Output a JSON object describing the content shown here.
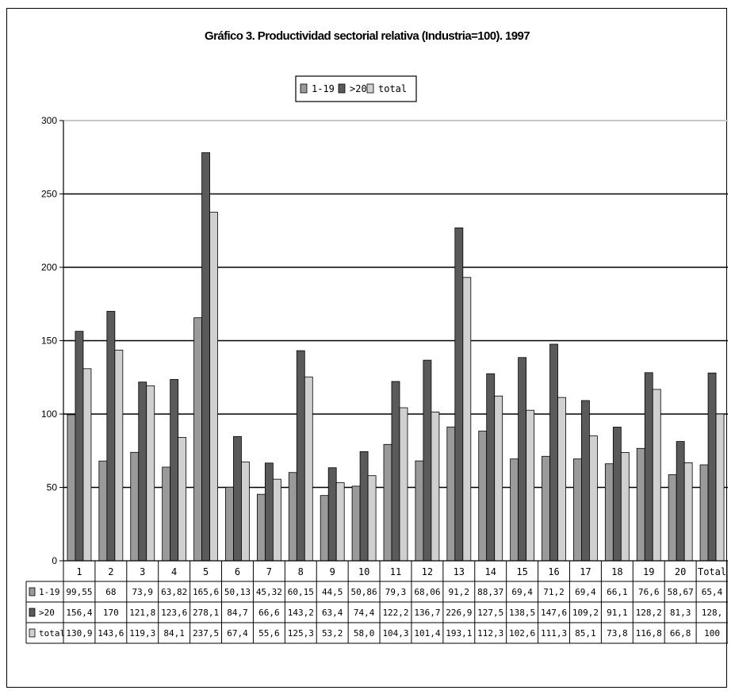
{
  "chart_data": {
    "type": "bar",
    "title": "Gráfico 3. Productividad sectorial relativa (Industria=100). 1997",
    "xlabel": "",
    "ylabel": "",
    "ylim": [
      0,
      300
    ],
    "y_ticks": [
      0,
      50,
      100,
      150,
      200,
      250,
      300
    ],
    "grid": true,
    "legend_position": "top-center",
    "categories": [
      "1",
      "2",
      "3",
      "4",
      "5",
      "6",
      "7",
      "8",
      "9",
      "10",
      "11",
      "12",
      "13",
      "14",
      "15",
      "16",
      "17",
      "18",
      "19",
      "20",
      "Total"
    ],
    "series": [
      {
        "name": "1-19",
        "color": "#9a9a9a",
        "values": [
          99.55,
          68,
          73.9,
          63.82,
          165.6,
          50.13,
          45.32,
          60.15,
          44.5,
          50.86,
          79.3,
          68.06,
          91.2,
          88.37,
          69.4,
          71.2,
          69.4,
          66.1,
          76.6,
          58.67,
          65.4
        ],
        "table_text": [
          "99,55",
          "68",
          "73,9",
          "63,82",
          "165,6",
          "50,13",
          "45,32",
          "60,15",
          "44,5",
          "50,86",
          "79,3",
          "68,06",
          "91,2",
          "88,37",
          "69,4",
          "71,2",
          "69,4",
          "66,1",
          "76,6",
          "58,67",
          "65,4"
        ]
      },
      {
        "name": ">20",
        "color": "#5a5a5a",
        "values": [
          156.4,
          170,
          121.8,
          123.6,
          278.1,
          84.7,
          66.6,
          143.2,
          63.4,
          74.4,
          122.2,
          136.7,
          226.9,
          127.5,
          138.5,
          147.6,
          109.2,
          91.1,
          128.2,
          81.3,
          128
        ],
        "table_text": [
          "156,4",
          "170",
          "121,8",
          "123,6",
          "278,1",
          "84,7",
          "66,6",
          "143,2",
          "63,4",
          "74,4",
          "122,2",
          "136,7",
          "226,9",
          "127,5",
          "138,5",
          "147,6",
          "109,2",
          "91,1",
          "128,2",
          "81,3",
          "128,"
        ]
      },
      {
        "name": "total",
        "color": "#d0d0d0",
        "values": [
          130.9,
          143.6,
          119.3,
          84.1,
          237.5,
          67.4,
          55.6,
          125.3,
          53.2,
          58.0,
          104.3,
          101.4,
          193.1,
          112.3,
          102.6,
          111.3,
          85.1,
          73.8,
          116.8,
          66.8,
          100
        ],
        "table_text": [
          "130,9",
          "143,6",
          "119,3",
          "84,1",
          "237,5",
          "67,4",
          "55,6",
          "125,3",
          "53,2",
          "58,0",
          "104,3",
          "101,4",
          "193,1",
          "112,3",
          "102,6",
          "111,3",
          "85,1",
          "73,8",
          "116,8",
          "66,8",
          "100"
        ]
      }
    ]
  }
}
